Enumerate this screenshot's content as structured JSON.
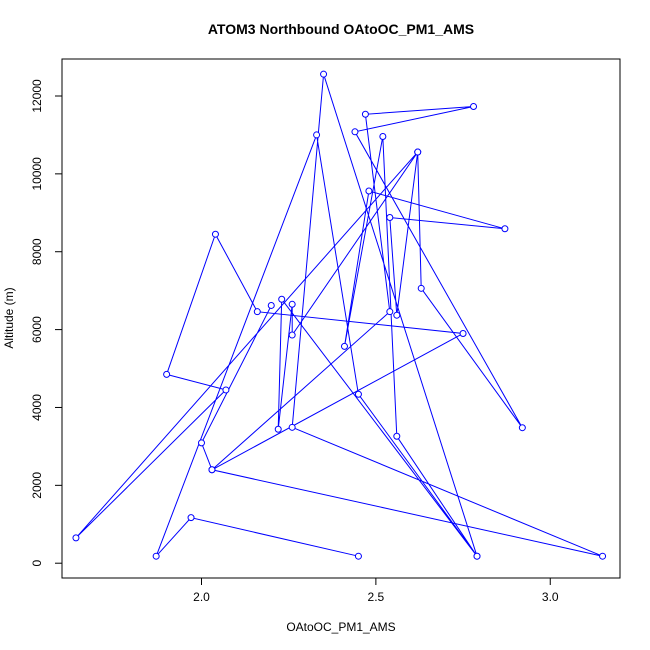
{
  "chart_data": {
    "type": "line",
    "title": "ATOM3 Northbound OAtoOC_PM1_AMS",
    "xlabel": "OAtoOC_PM1_AMS",
    "ylabel": "Altitude (m)",
    "xlim": [
      1.6,
      3.2
    ],
    "ylim": [
      -380,
      12950
    ],
    "x_ticks": [
      2.0,
      2.5,
      3.0
    ],
    "x_tick_labels": [
      "2.0",
      "2.5",
      "3.0"
    ],
    "y_ticks": [
      0,
      2000,
      4000,
      6000,
      8000,
      10000,
      12000
    ],
    "y_tick_labels": [
      "0",
      "2000",
      "4000",
      "6000",
      "8000",
      "10000",
      "12000"
    ],
    "grid": false,
    "legend": "none",
    "series": [
      {
        "color": "#0000ff",
        "marker": "open-circle",
        "points": [
          {
            "x": 2.45,
            "y": 180
          },
          {
            "x": 1.97,
            "y": 1170
          },
          {
            "x": 1.87,
            "y": 180
          },
          {
            "x": 2.33,
            "y": 11000
          },
          {
            "x": 2.45,
            "y": 4340
          },
          {
            "x": 2.79,
            "y": 180
          },
          {
            "x": 2.23,
            "y": 6780
          },
          {
            "x": 2.22,
            "y": 3440
          },
          {
            "x": 2.26,
            "y": 6650
          },
          {
            "x": 2.26,
            "y": 5860
          },
          {
            "x": 2.62,
            "y": 10560
          },
          {
            "x": 2.63,
            "y": 7060
          },
          {
            "x": 2.92,
            "y": 3480
          },
          {
            "x": 2.44,
            "y": 11080
          },
          {
            "x": 2.78,
            "y": 11730
          },
          {
            "x": 2.47,
            "y": 11530
          },
          {
            "x": 2.54,
            "y": 6460
          },
          {
            "x": 2.03,
            "y": 2400
          },
          {
            "x": 2.75,
            "y": 5900
          },
          {
            "x": 2.16,
            "y": 6460
          },
          {
            "x": 2.04,
            "y": 8450
          },
          {
            "x": 1.9,
            "y": 4850
          },
          {
            "x": 2.07,
            "y": 4450
          },
          {
            "x": 1.64,
            "y": 650
          },
          {
            "x": 2.62,
            "y": 10560
          },
          {
            "x": 2.56,
            "y": 6370
          },
          {
            "x": 2.54,
            "y": 8880
          },
          {
            "x": 2.87,
            "y": 8590
          },
          {
            "x": 2.48,
            "y": 9560
          },
          {
            "x": 2.41,
            "y": 5570
          },
          {
            "x": 2.52,
            "y": 10960
          },
          {
            "x": 2.56,
            "y": 3260
          },
          {
            "x": 2.79,
            "y": 180
          },
          {
            "x": 2.35,
            "y": 12560
          },
          {
            "x": 2.26,
            "y": 3490
          },
          {
            "x": 3.15,
            "y": 180
          },
          {
            "x": 2.03,
            "y": 2400
          },
          {
            "x": 2.0,
            "y": 3090
          },
          {
            "x": 2.2,
            "y": 6620
          }
        ]
      }
    ]
  }
}
